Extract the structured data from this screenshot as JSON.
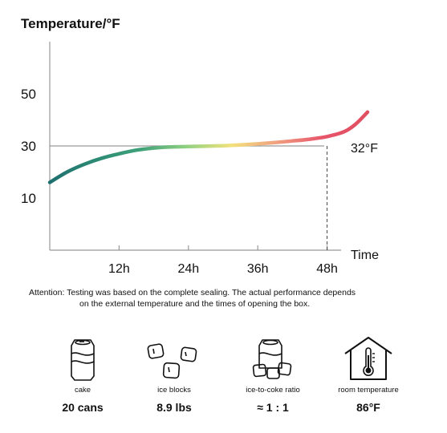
{
  "chart_data": {
    "type": "line",
    "ylabel": "Temperature/°F",
    "xlabel": "Time",
    "yticks": [
      10,
      30,
      50
    ],
    "xticks": [
      "12h",
      "24h",
      "36h",
      "48h"
    ],
    "x_tick_values": [
      12,
      24,
      36,
      48
    ],
    "xlim": [
      0,
      55
    ],
    "ylim": [
      -10,
      70
    ],
    "reference_line": {
      "y": 32,
      "label": "32°F"
    },
    "marker_x": 48,
    "series": [
      {
        "x": [
          0,
          3,
          6,
          9,
          12,
          15,
          18,
          21,
          24,
          27,
          30,
          33,
          36,
          39,
          42,
          45,
          48,
          51,
          53,
          55
        ],
        "y": [
          16,
          20,
          23,
          25.3,
          27,
          28.4,
          29.2,
          29.6,
          29.8,
          29.9,
          30.1,
          30.4,
          30.8,
          31.3,
          31.9,
          32.6,
          33.6,
          35.5,
          38.5,
          43
        ],
        "colors": [
          "#1e6f6f",
          "#2c8a74",
          "#3fa17a",
          "#8fd080",
          "#f2e27c",
          "#f0a080",
          "#e8546a",
          "#e04f60"
        ]
      }
    ],
    "grid": false
  },
  "footer": {
    "note_line1": "Attention: Testing was based on the complete sealing. The actual performance depends",
    "note_line2": "on the external temperature and the times of opening the box.",
    "items": [
      {
        "label": "cake",
        "value": "20 cans",
        "icon": "soda-can-icon"
      },
      {
        "label": "ice blocks",
        "value": "8.9 lbs",
        "icon": "ice-cubes-icon"
      },
      {
        "label": "ice-to-coke ratio",
        "value": "≈ 1 : 1",
        "icon": "can-with-ice-icon"
      },
      {
        "label": "room temperature",
        "value": "86°F",
        "icon": "house-thermometer-icon"
      }
    ]
  }
}
